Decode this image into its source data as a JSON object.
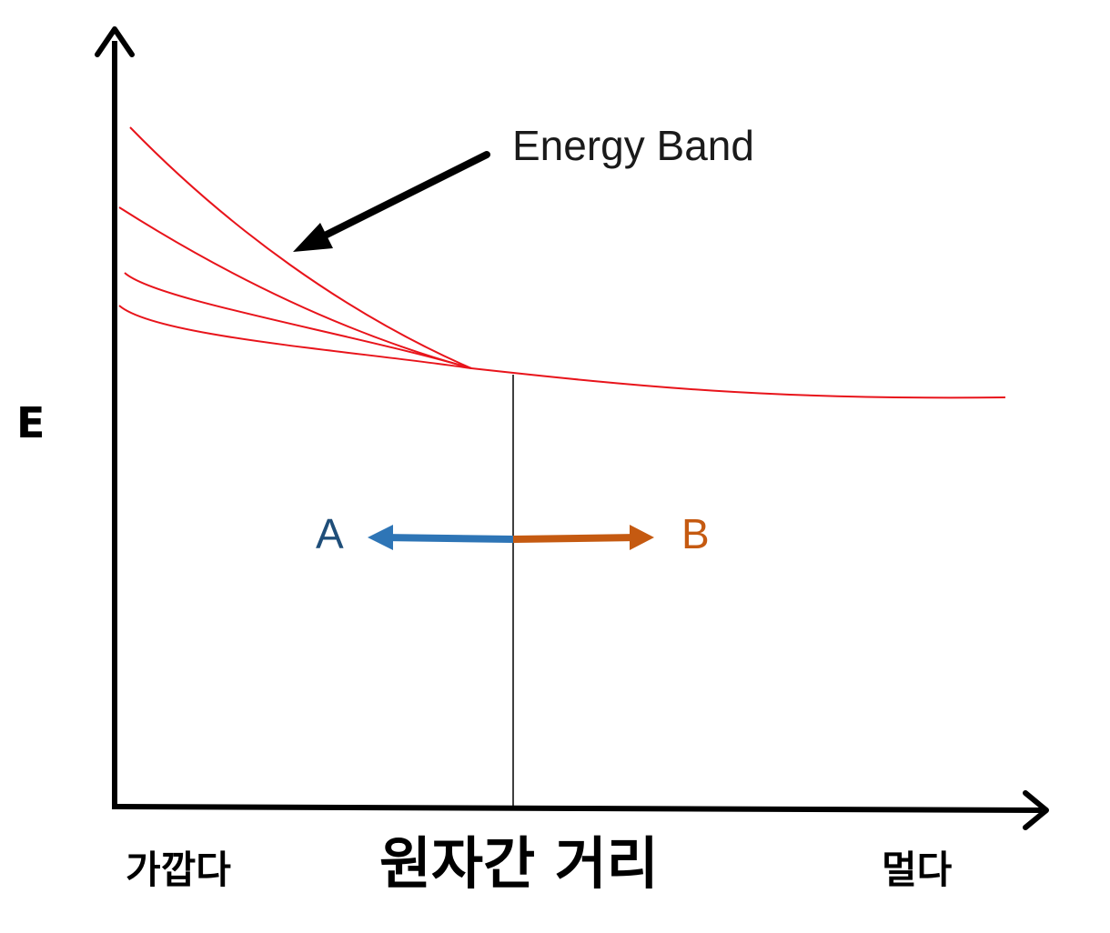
{
  "axis_y_label": "E",
  "axis_x_label": "원자간 거리",
  "axis_x_near_label": "가깝다",
  "axis_x_far_label": "멀다",
  "band_label": "Energy Band",
  "left_arrow_label": "A",
  "right_arrow_label": "B",
  "colors": {
    "axis": "#000000",
    "band_curves": "#e8141b",
    "arrow_a": "#2e75b6",
    "arrow_b": "#c55a11",
    "label_a": "#1f4e79",
    "label_b": "#c55a11"
  }
}
